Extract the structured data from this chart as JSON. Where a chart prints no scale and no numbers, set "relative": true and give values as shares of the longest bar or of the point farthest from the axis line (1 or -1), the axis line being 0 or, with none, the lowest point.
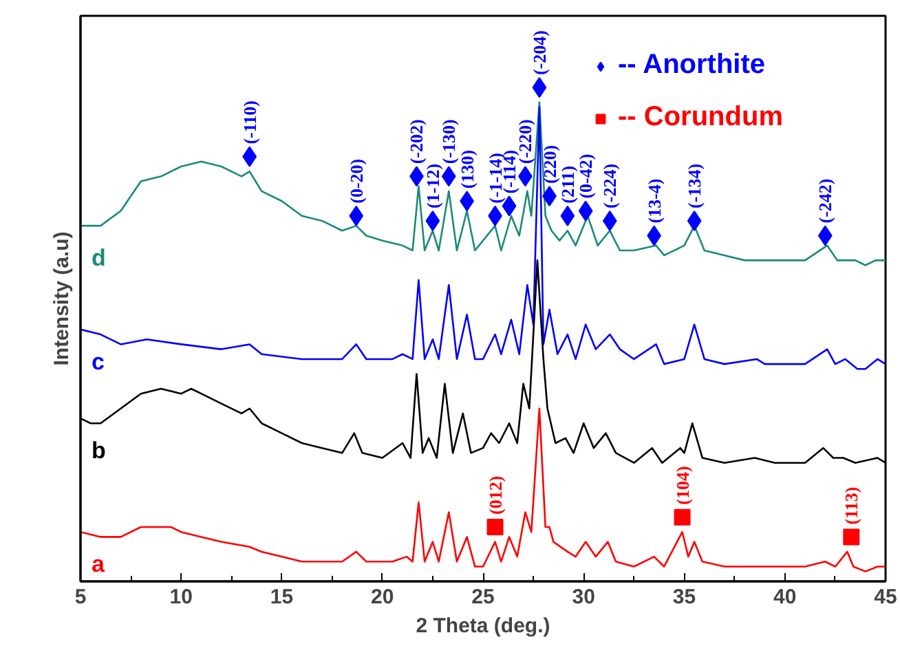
{
  "chart_data": {
    "type": "line",
    "relative": true,
    "xlabel": "2 Theta (deg.)",
    "ylabel": "Intensity (a.u)",
    "xlim": [
      5,
      45
    ],
    "xticks": [
      5,
      10,
      15,
      20,
      25,
      30,
      35,
      40,
      45
    ],
    "grid": false,
    "legend": "top right",
    "series": [
      {
        "name": "a",
        "color": "#ff0000",
        "x": [
          5,
          6,
          7,
          8,
          8.5,
          9.5,
          10,
          11,
          12,
          13.4,
          14,
          15,
          16,
          17,
          18,
          18.7,
          19.2,
          20.5,
          21.2,
          21.5,
          21.8,
          22.1,
          22.5,
          22.8,
          23.3,
          23.7,
          24.2,
          24.6,
          25,
          25.6,
          25.9,
          26.3,
          26.7,
          27.1,
          27.4,
          27.8,
          28.1,
          28.3,
          28.5,
          29.2,
          29.6,
          30.1,
          30.6,
          31.2,
          31.6,
          32.5,
          33.5,
          34,
          34.9,
          35.2,
          35.5,
          35.9,
          37,
          38.6,
          39.5,
          41,
          42,
          42.5,
          43.1,
          43.4,
          44,
          44.6,
          45
        ],
        "values": [
          0.1,
          0.09,
          0.09,
          0.11,
          0.11,
          0.11,
          0.1,
          0.09,
          0.08,
          0.07,
          0.06,
          0.05,
          0.04,
          0.04,
          0.04,
          0.06,
          0.04,
          0.04,
          0.05,
          0.04,
          0.16,
          0.04,
          0.08,
          0.04,
          0.14,
          0.04,
          0.09,
          0.03,
          0.03,
          0.08,
          0.04,
          0.09,
          0.05,
          0.14,
          0.1,
          0.35,
          0.11,
          0.11,
          0.08,
          0.06,
          0.05,
          0.08,
          0.05,
          0.08,
          0.04,
          0.03,
          0.05,
          0.03,
          0.1,
          0.05,
          0.08,
          0.04,
          0.03,
          0.03,
          0.03,
          0.03,
          0.04,
          0.03,
          0.06,
          0.03,
          0.02,
          0.03,
          0.03
        ]
      },
      {
        "name": "b",
        "color": "#000000",
        "x": [
          5,
          5.5,
          6,
          7,
          8,
          9,
          10,
          10.5,
          11,
          12,
          13,
          13.4,
          14,
          15,
          16,
          17,
          18,
          18.6,
          19,
          20,
          21,
          21.4,
          21.7,
          22,
          22.3,
          22.7,
          23.1,
          23.5,
          24,
          24.4,
          25,
          25.4,
          25.8,
          26.3,
          26.7,
          27,
          27.3,
          27.7,
          28,
          28.2,
          28.6,
          29.1,
          29.5,
          30,
          30.5,
          31.1,
          31.6,
          32.5,
          33.4,
          33.9,
          34.8,
          35,
          35.4,
          35.9,
          37,
          38.5,
          39.5,
          41,
          41.9,
          42.4,
          42.9,
          43.5,
          44.6,
          45
        ],
        "values": [
          0.33,
          0.32,
          0.32,
          0.35,
          0.38,
          0.39,
          0.38,
          0.39,
          0.38,
          0.36,
          0.34,
          0.35,
          0.32,
          0.3,
          0.28,
          0.27,
          0.26,
          0.3,
          0.26,
          0.25,
          0.28,
          0.25,
          0.42,
          0.26,
          0.29,
          0.25,
          0.4,
          0.26,
          0.34,
          0.26,
          0.27,
          0.3,
          0.28,
          0.32,
          0.28,
          0.4,
          0.35,
          0.65,
          0.45,
          0.35,
          0.28,
          0.29,
          0.26,
          0.32,
          0.27,
          0.3,
          0.26,
          0.24,
          0.27,
          0.24,
          0.27,
          0.26,
          0.32,
          0.25,
          0.24,
          0.25,
          0.24,
          0.24,
          0.27,
          0.25,
          0.25,
          0.24,
          0.25,
          0.24
        ]
      },
      {
        "name": "c",
        "color": "#0000ff",
        "x": [
          5,
          6,
          7,
          8.3,
          10,
          12,
          13.4,
          14,
          16,
          18,
          18.7,
          19.2,
          20.5,
          21,
          21.5,
          21.8,
          22.1,
          22.5,
          22.8,
          23.3,
          23.7,
          24.2,
          24.6,
          25,
          25.6,
          25.9,
          26.4,
          26.8,
          27.2,
          27.5,
          27.8,
          28,
          28.3,
          28.7,
          29.2,
          29.6,
          30.1,
          30.6,
          31.3,
          31.8,
          32.5,
          33.6,
          34,
          35,
          35.5,
          36,
          37,
          38.6,
          39,
          40,
          41,
          42.1,
          42.5,
          43,
          43.6,
          44,
          44.6,
          45
        ],
        "values": [
          0.51,
          0.5,
          0.48,
          0.49,
          0.48,
          0.47,
          0.48,
          0.46,
          0.45,
          0.45,
          0.48,
          0.45,
          0.45,
          0.46,
          0.45,
          0.61,
          0.45,
          0.49,
          0.45,
          0.6,
          0.45,
          0.54,
          0.45,
          0.45,
          0.5,
          0.46,
          0.53,
          0.46,
          0.6,
          0.52,
          0.96,
          0.48,
          0.55,
          0.46,
          0.5,
          0.45,
          0.52,
          0.47,
          0.5,
          0.47,
          0.45,
          0.48,
          0.44,
          0.45,
          0.52,
          0.45,
          0.44,
          0.45,
          0.44,
          0.44,
          0.44,
          0.47,
          0.44,
          0.45,
          0.43,
          0.43,
          0.45,
          0.44
        ]
      },
      {
        "name": "d",
        "color": "#1a8a7a",
        "x": [
          5,
          6,
          7,
          8,
          9,
          10,
          11,
          12,
          13,
          13.4,
          14,
          15,
          16,
          17,
          18,
          18.7,
          19.2,
          20,
          21,
          21.5,
          21.8,
          22.1,
          22.5,
          22.8,
          23.3,
          23.7,
          24.2,
          24.6,
          25.6,
          25.9,
          26.4,
          26.8,
          27.2,
          27.4,
          27.8,
          28.1,
          28.4,
          28.8,
          29.2,
          29.6,
          30.2,
          30.7,
          31.3,
          31.8,
          32.5,
          33.6,
          34,
          35,
          35.5,
          36,
          37,
          38,
          39,
          40,
          41,
          42.1,
          42.6,
          43.5,
          44,
          44.5,
          45
        ],
        "values": [
          0.72,
          0.72,
          0.75,
          0.81,
          0.82,
          0.84,
          0.85,
          0.84,
          0.82,
          0.83,
          0.79,
          0.77,
          0.74,
          0.73,
          0.71,
          0.72,
          0.7,
          0.69,
          0.68,
          0.67,
          0.8,
          0.67,
          0.71,
          0.67,
          0.79,
          0.67,
          0.75,
          0.67,
          0.72,
          0.67,
          0.74,
          0.7,
          0.79,
          0.74,
          0.97,
          0.74,
          0.71,
          0.69,
          0.71,
          0.68,
          0.74,
          0.68,
          0.71,
          0.67,
          0.67,
          0.68,
          0.66,
          0.68,
          0.72,
          0.67,
          0.66,
          0.65,
          0.65,
          0.65,
          0.65,
          0.68,
          0.65,
          0.65,
          0.64,
          0.65,
          0.65
        ]
      },
      {
        "name": "-- Anorthite",
        "type": "scatter",
        "marker": "diamond",
        "color": "#0000ff",
        "x": [
          13.4,
          18.7,
          21.7,
          22.5,
          23.3,
          24.2,
          25.6,
          26.3,
          27.1,
          27.8,
          28.3,
          29.2,
          30.1,
          31.3,
          33.5,
          35.5,
          42.0
        ],
        "values": [
          0.86,
          0.74,
          0.82,
          0.73,
          0.82,
          0.77,
          0.74,
          0.76,
          0.82,
          1.0,
          0.78,
          0.74,
          0.75,
          0.73,
          0.7,
          0.73,
          0.7
        ]
      },
      {
        "name": "-- Corundum",
        "type": "scatter",
        "marker": "square",
        "color": "#ff0000",
        "x": [
          25.6,
          34.9,
          43.3
        ],
        "values": [
          0.11,
          0.13,
          0.09
        ]
      }
    ],
    "annotations": [
      {
        "text": "(-110)",
        "x": 13.4,
        "y": 0.86
      },
      {
        "text": "(0-20)",
        "x": 18.7,
        "y": 0.74
      },
      {
        "text": "(-202)",
        "x": 21.7,
        "y": 0.82
      },
      {
        "text": "(1-12)",
        "x": 22.5,
        "y": 0.73
      },
      {
        "text": "(-130)",
        "x": 23.3,
        "y": 0.82
      },
      {
        "text": "(130)",
        "x": 24.2,
        "y": 0.77
      },
      {
        "text": "(-1-14)",
        "x": 25.6,
        "y": 0.74
      },
      {
        "text": "(-114)",
        "x": 26.3,
        "y": 0.76
      },
      {
        "text": "(-220)",
        "x": 27.1,
        "y": 0.82
      },
      {
        "text": "(-204)",
        "x": 27.8,
        "y": 1.0
      },
      {
        "text": "(220)",
        "x": 28.3,
        "y": 0.78
      },
      {
        "text": "(211)",
        "x": 29.2,
        "y": 0.74
      },
      {
        "text": "(0-42)",
        "x": 30.1,
        "y": 0.75
      },
      {
        "text": "(-224)",
        "x": 31.3,
        "y": 0.73
      },
      {
        "text": "(13-4)",
        "x": 33.5,
        "y": 0.7
      },
      {
        "text": "(-134)",
        "x": 35.5,
        "y": 0.73
      },
      {
        "text": "(-242)",
        "x": 42.0,
        "y": 0.7
      },
      {
        "text": "(012)",
        "x": 25.6,
        "y": 0.11
      },
      {
        "text": "(104)",
        "x": 34.9,
        "y": 0.13
      },
      {
        "text": "(113)",
        "x": 43.3,
        "y": 0.09
      }
    ]
  }
}
